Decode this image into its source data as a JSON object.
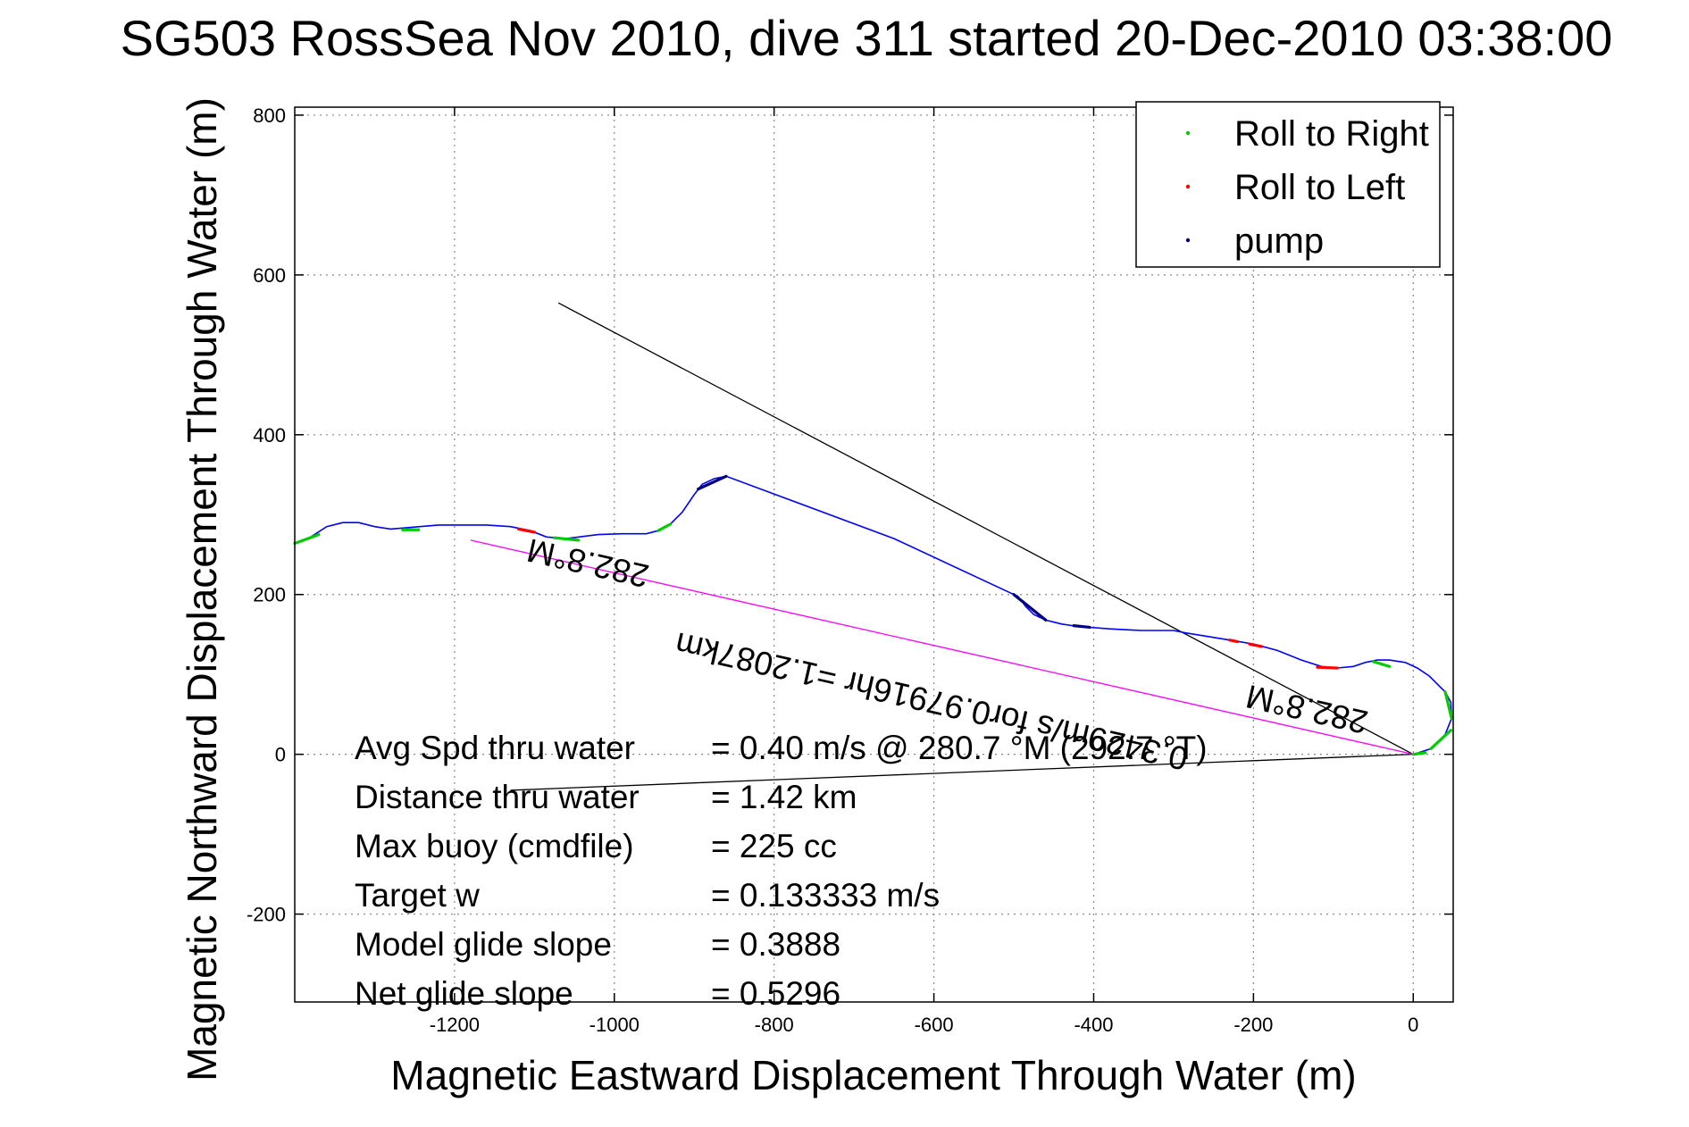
{
  "chart_data": {
    "type": "scatter",
    "title": "SG503 RossSea Nov 2010, dive 311 started 20-Dec-2010 03:38:00",
    "xlabel": "Magnetic Eastward Displacement Through Water (m)",
    "ylabel": "Magnetic Northward Displacement Through Water (m)",
    "xlim": [
      -1400,
      50
    ],
    "ylim": [
      -310,
      810
    ],
    "x_ticks": [
      -1200,
      -1000,
      -800,
      -600,
      -400,
      -200,
      0
    ],
    "x_tick_labels": [
      "-1200",
      "-1000",
      "-800",
      "-600",
      "-400",
      "-200",
      "0"
    ],
    "y_ticks": [
      -200,
      0,
      200,
      400,
      600,
      800
    ],
    "y_tick_labels": [
      "-200",
      "0",
      "200",
      "400",
      "600",
      "800"
    ],
    "grid": true,
    "legend_position": "top-right",
    "colors": {
      "track": "#0000ff",
      "roll_right": "#00cc00",
      "roll_left": "#ff0000",
      "pump": "#000080",
      "magenta_line": "#ff00ff",
      "black_line": "#000000"
    },
    "legend": [
      {
        "name": "Roll to Right",
        "color": "#00cc00"
      },
      {
        "name": "Roll to Left",
        "color": "#ff0000"
      },
      {
        "name": "pump",
        "color": "#000080"
      }
    ],
    "track": [
      [
        0,
        0
      ],
      [
        22,
        7
      ],
      [
        40,
        25
      ],
      [
        48,
        45
      ],
      [
        47,
        65
      ],
      [
        40,
        78
      ],
      [
        30,
        88
      ],
      [
        20,
        98
      ],
      [
        5,
        108
      ],
      [
        -10,
        115
      ],
      [
        -30,
        118
      ],
      [
        -45,
        118
      ],
      [
        -60,
        115
      ],
      [
        -75,
        110
      ],
      [
        -95,
        108
      ],
      [
        -115,
        110
      ],
      [
        -140,
        118
      ],
      [
        -170,
        130
      ],
      [
        -200,
        138
      ],
      [
        -230,
        143
      ],
      [
        -260,
        148
      ],
      [
        -285,
        152
      ],
      [
        -300,
        155
      ],
      [
        -340,
        155
      ],
      [
        -380,
        157
      ],
      [
        -420,
        160
      ],
      [
        -440,
        163
      ],
      [
        -460,
        168
      ],
      [
        -475,
        175
      ],
      [
        -485,
        185
      ],
      [
        -495,
        198
      ],
      [
        -500,
        200
      ],
      [
        -650,
        270
      ],
      [
        -860,
        348
      ],
      [
        -875,
        345
      ],
      [
        -890,
        338
      ],
      [
        -900,
        325
      ],
      [
        -915,
        303
      ],
      [
        -930,
        288
      ],
      [
        -945,
        280
      ],
      [
        -960,
        276
      ],
      [
        -990,
        276
      ],
      [
        -1020,
        275
      ],
      [
        -1060,
        270
      ],
      [
        -1085,
        272
      ],
      [
        -1105,
        280
      ],
      [
        -1130,
        285
      ],
      [
        -1160,
        287
      ],
      [
        -1220,
        287
      ],
      [
        -1280,
        282
      ],
      [
        -1300,
        285
      ],
      [
        -1320,
        290
      ],
      [
        -1340,
        290
      ],
      [
        -1360,
        285
      ],
      [
        -1380,
        272
      ],
      [
        -1395,
        265
      ],
      [
        -1400,
        264
      ]
    ],
    "roll_right_segments": [
      {
        "from": [
          -1400,
          264
        ],
        "to": [
          -1370,
          275
        ]
      },
      {
        "from": [
          -1265,
          281
        ],
        "to": [
          -1245,
          281
        ]
      },
      {
        "from": [
          -1075,
          271
        ],
        "to": [
          -1045,
          268
        ]
      },
      {
        "from": [
          -945,
          280
        ],
        "to": [
          -930,
          288
        ]
      },
      {
        "from": [
          -50,
          116
        ],
        "to": [
          -30,
          110
        ]
      },
      {
        "from": [
          40,
          78
        ],
        "to": [
          48,
          45
        ]
      },
      {
        "from": [
          47,
          30
        ],
        "to": [
          22,
          7
        ]
      },
      {
        "from": [
          15,
          2
        ],
        "to": [
          0,
          0
        ]
      }
    ],
    "roll_left_segments": [
      {
        "from": [
          -1120,
          282
        ],
        "to": [
          -1100,
          278
        ]
      },
      {
        "from": [
          -230,
          143
        ],
        "to": [
          -220,
          141
        ]
      },
      {
        "from": [
          -205,
          138
        ],
        "to": [
          -190,
          135
        ]
      },
      {
        "from": [
          -120,
          109
        ],
        "to": [
          -95,
          108
        ]
      }
    ],
    "pump_segments": [
      {
        "from": [
          -895,
          332
        ],
        "to": [
          -860,
          348
        ]
      },
      {
        "from": [
          -500,
          200
        ],
        "to": [
          -460,
          168
        ]
      },
      {
        "from": [
          -425,
          161
        ],
        "to": [
          -405,
          159
        ]
      }
    ],
    "magenta_line": [
      [
        -1180,
        268
      ],
      [
        0,
        0
      ]
    ],
    "black_line_1": [
      [
        -1070,
        565
      ],
      [
        0,
        0
      ]
    ],
    "black_line_2": [
      [
        -1130,
        -45
      ],
      [
        0,
        0
      ]
    ],
    "rotated_annotations": [
      {
        "text": "282.8°M",
        "at": [
          -1030,
          253
        ]
      },
      {
        "text": "0.3429m/s for0.97916hr =1.2087km",
        "at": [
          -600,
          80
        ]
      },
      {
        "text": "282.8°M",
        "at": [
          -130,
          70
        ]
      }
    ],
    "stats": [
      {
        "label": "Avg Spd thru water",
        "value": "=  0.40 m/s @ 280.7 °M (292.7 °T)"
      },
      {
        "label": "Distance thru water",
        "value": "=  1.42 km"
      },
      {
        "label": "Max buoy (cmdfile)",
        "value": "= 225 cc"
      },
      {
        "label": "Target w",
        "value": "= 0.133333 m/s"
      },
      {
        "label": "Model glide slope",
        "value": "= 0.3888"
      },
      {
        "label": "Net glide slope",
        "value": "= 0.5296"
      }
    ]
  }
}
